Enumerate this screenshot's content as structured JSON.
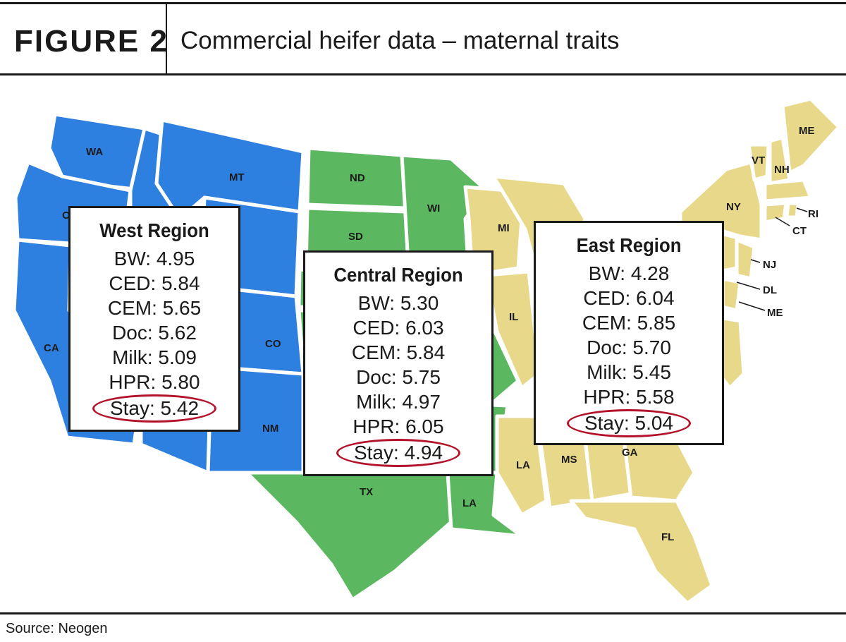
{
  "header": {
    "figure_label": "FIGURE 2",
    "title": "Commercial heifer data – maternal traits"
  },
  "legend_colors": {
    "west": "#2d7fe0",
    "central": "#5cb860",
    "east": "#e8d88a"
  },
  "regions": [
    {
      "key": "west",
      "name": "West Region",
      "traits": [
        {
          "label": "BW: 4.95"
        },
        {
          "label": "CED: 5.84"
        },
        {
          "label": "CEM: 5.65"
        },
        {
          "label": "Doc: 5.62"
        },
        {
          "label": "Milk: 5.09"
        },
        {
          "label": "HPR: 5.80"
        }
      ],
      "stay": "Stay: 5.42"
    },
    {
      "key": "central",
      "name": "Central Region",
      "traits": [
        {
          "label": "BW: 5.30"
        },
        {
          "label": "CED: 6.03"
        },
        {
          "label": "CEM: 5.84"
        },
        {
          "label": "Doc: 5.75"
        },
        {
          "label": "Milk: 4.97"
        },
        {
          "label": "HPR: 6.05"
        }
      ],
      "stay": "Stay: 4.94"
    },
    {
      "key": "east",
      "name": "East Region",
      "traits": [
        {
          "label": "BW: 4.28"
        },
        {
          "label": "CED: 6.04"
        },
        {
          "label": "CEM: 5.85"
        },
        {
          "label": "Doc: 5.70"
        },
        {
          "label": "Milk: 5.45"
        },
        {
          "label": "HPR: 5.58"
        }
      ],
      "stay": "Stay: 5.04"
    }
  ],
  "state_labels": {
    "wa": "WA",
    "o": "O",
    "ca": "CA",
    "mt": "MT",
    "co": "CO",
    "nm": "NM",
    "nd": "ND",
    "sd": "SD",
    "wi": "WI",
    "tx": "TX",
    "la_central": "LA",
    "mi": "MI",
    "il": "IL",
    "la_east": "LA",
    "ms": "MS",
    "ga": "GA",
    "fl": "FL",
    "me_top": "ME",
    "vt": "VT",
    "nh": "NH",
    "ny": "NY",
    "ri": "RI",
    "ct": "CT",
    "nj": "NJ",
    "dl": "DL",
    "me_bottom": "ME"
  },
  "footer": {
    "source": "Source: Neogen"
  }
}
